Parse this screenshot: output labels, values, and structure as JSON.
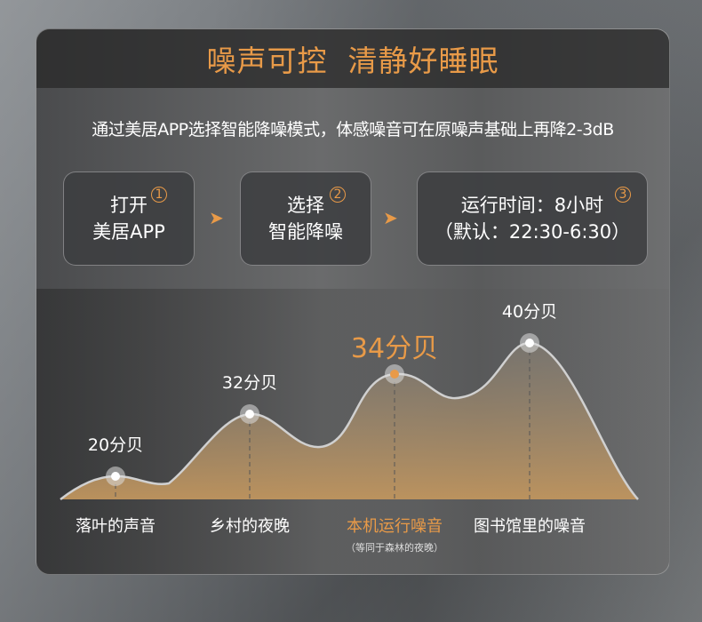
{
  "header": {
    "title": "噪声可控  清静好睡眠"
  },
  "subtitle": "通过美居APP选择智能降噪模式，体感噪音可在原噪声基础上再降2-3dB",
  "steps": [
    {
      "line1": "打开",
      "line2": "美居APP",
      "num": "1"
    },
    {
      "line1": "选择",
      "line2": "智能降噪",
      "num": "2"
    },
    {
      "line1": "运行时间：8小时",
      "line2": "（默认：22:30-6:30）",
      "num": "3"
    }
  ],
  "arrow": "➤",
  "colors": {
    "accent": "#e89a48",
    "fill": "#b89462",
    "line": "#d0d0d0"
  },
  "chart_data": {
    "type": "area",
    "categories": [
      "落叶的声音",
      "乡村的夜晚",
      "本机运行噪音",
      "图书馆里的噪音"
    ],
    "values": [
      20,
      32,
      34,
      40
    ],
    "unit": "分贝",
    "labels": [
      "20分贝",
      "32分贝",
      "34分贝",
      "40分贝"
    ],
    "highlight_index": 2,
    "note": "（等同于森林的夜晚）"
  }
}
